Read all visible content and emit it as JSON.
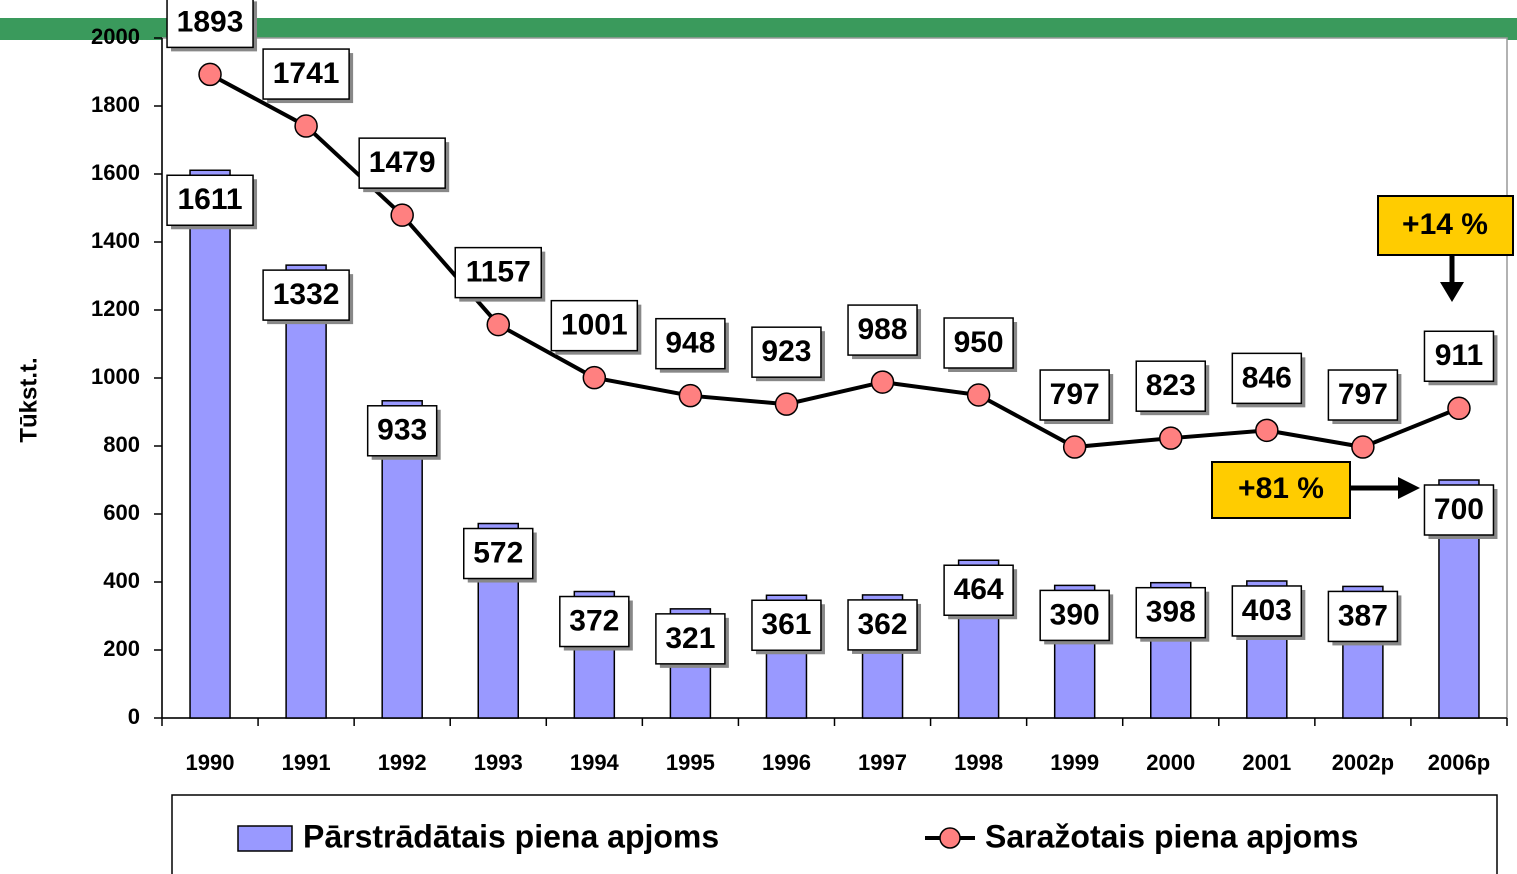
{
  "chart_data": {
    "type": "bar_line",
    "y_label": "Tūkst.t.",
    "categories": [
      "1990",
      "1991",
      "1992",
      "1993",
      "1994",
      "1995",
      "1996",
      "1997",
      "1998",
      "1999",
      "2000",
      "2001",
      "2002p",
      "2006p"
    ],
    "series": [
      {
        "name": "Pārstrādātais piena apjoms",
        "type": "bar",
        "color": "#9999ff",
        "values": [
          1611,
          1332,
          933,
          572,
          372,
          321,
          361,
          362,
          464,
          390,
          398,
          403,
          387,
          700
        ]
      },
      {
        "name": "Saražotais piena apjoms",
        "type": "line",
        "color": "#000000",
        "marker_color": "#ff8080",
        "values": [
          1893,
          1741,
          1479,
          1157,
          1001,
          948,
          923,
          988,
          950,
          797,
          823,
          846,
          797,
          911
        ]
      }
    ],
    "annotations": [
      "+14 %",
      "+81 %"
    ],
    "ylim": [
      0,
      2000
    ],
    "yticks": [
      0,
      200,
      400,
      600,
      800,
      1000,
      1200,
      1400,
      1600,
      1800,
      2000
    ]
  }
}
